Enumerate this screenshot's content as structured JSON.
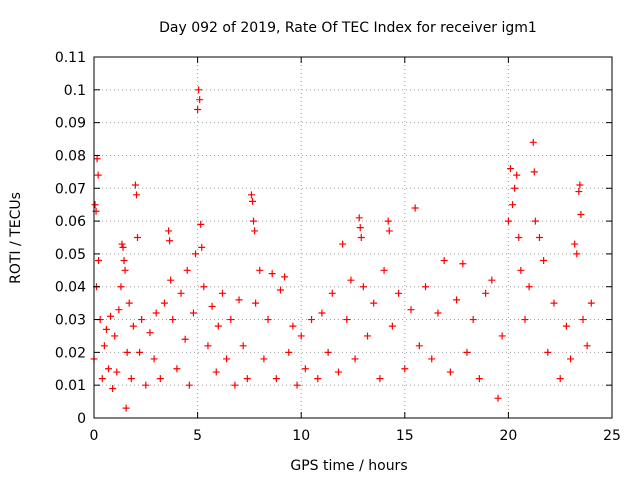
{
  "chart_data": {
    "type": "scatter",
    "title": "Day 092 of 2019, Rate Of TEC Index for receiver igm1",
    "xlabel": "GPS time / hours",
    "ylabel": "ROTI / TECUs",
    "xlim": [
      0,
      25
    ],
    "ylim": [
      0,
      0.11
    ],
    "xticks": [
      0,
      5,
      10,
      15,
      20,
      25
    ],
    "xtick_labels": [
      "0",
      "5",
      "10",
      "15",
      "20",
      "25"
    ],
    "yticks": [
      0,
      0.01,
      0.02,
      0.03,
      0.04,
      0.05,
      0.06,
      0.07,
      0.08,
      0.09,
      0.1,
      0.11
    ],
    "ytick_labels": [
      "0",
      "0.01",
      "0.02",
      "0.03",
      "0.04",
      "0.05",
      "0.06",
      "0.07",
      "0.08",
      "0.09",
      "0.1",
      "0.11"
    ],
    "grid": true,
    "marker": "+",
    "color": "#ff0000",
    "series": [
      {
        "name": "ROTI",
        "points": [
          [
            0.0,
            0.018
          ],
          [
            0.05,
            0.065
          ],
          [
            0.1,
            0.063
          ],
          [
            0.12,
            0.04
          ],
          [
            0.15,
            0.079
          ],
          [
            0.2,
            0.074
          ],
          [
            0.22,
            0.048
          ],
          [
            0.3,
            0.03
          ],
          [
            0.4,
            0.012
          ],
          [
            0.5,
            0.022
          ],
          [
            0.6,
            0.027
          ],
          [
            0.7,
            0.015
          ],
          [
            0.8,
            0.031
          ],
          [
            0.9,
            0.009
          ],
          [
            1.0,
            0.025
          ],
          [
            1.1,
            0.014
          ],
          [
            1.2,
            0.033
          ],
          [
            1.3,
            0.04
          ],
          [
            1.35,
            0.053
          ],
          [
            1.4,
            0.052
          ],
          [
            1.45,
            0.048
          ],
          [
            1.5,
            0.045
          ],
          [
            1.55,
            0.003
          ],
          [
            1.6,
            0.02
          ],
          [
            1.7,
            0.035
          ],
          [
            1.8,
            0.012
          ],
          [
            1.9,
            0.028
          ],
          [
            2.0,
            0.071
          ],
          [
            2.05,
            0.068
          ],
          [
            2.1,
            0.055
          ],
          [
            2.2,
            0.02
          ],
          [
            2.3,
            0.03
          ],
          [
            2.5,
            0.01
          ],
          [
            2.7,
            0.026
          ],
          [
            2.9,
            0.018
          ],
          [
            3.0,
            0.032
          ],
          [
            3.2,
            0.012
          ],
          [
            3.4,
            0.035
          ],
          [
            3.6,
            0.057
          ],
          [
            3.65,
            0.054
          ],
          [
            3.7,
            0.042
          ],
          [
            3.8,
            0.03
          ],
          [
            4.0,
            0.015
          ],
          [
            4.2,
            0.038
          ],
          [
            4.4,
            0.024
          ],
          [
            4.5,
            0.045
          ],
          [
            4.6,
            0.01
          ],
          [
            4.8,
            0.032
          ],
          [
            4.9,
            0.05
          ],
          [
            5.0,
            0.094
          ],
          [
            5.05,
            0.1
          ],
          [
            5.1,
            0.097
          ],
          [
            5.15,
            0.059
          ],
          [
            5.2,
            0.052
          ],
          [
            5.3,
            0.04
          ],
          [
            5.5,
            0.022
          ],
          [
            5.7,
            0.034
          ],
          [
            5.9,
            0.014
          ],
          [
            6.0,
            0.028
          ],
          [
            6.2,
            0.038
          ],
          [
            6.4,
            0.018
          ],
          [
            6.6,
            0.03
          ],
          [
            6.8,
            0.01
          ],
          [
            7.0,
            0.036
          ],
          [
            7.2,
            0.022
          ],
          [
            7.4,
            0.012
          ],
          [
            7.6,
            0.068
          ],
          [
            7.65,
            0.066
          ],
          [
            7.7,
            0.06
          ],
          [
            7.75,
            0.057
          ],
          [
            7.8,
            0.035
          ],
          [
            8.0,
            0.045
          ],
          [
            8.2,
            0.018
          ],
          [
            8.4,
            0.03
          ],
          [
            8.6,
            0.044
          ],
          [
            8.8,
            0.012
          ],
          [
            9.0,
            0.039
          ],
          [
            9.2,
            0.043
          ],
          [
            9.4,
            0.02
          ],
          [
            9.6,
            0.028
          ],
          [
            9.8,
            0.01
          ],
          [
            10.0,
            0.025
          ],
          [
            10.2,
            0.015
          ],
          [
            10.5,
            0.03
          ],
          [
            10.8,
            0.012
          ],
          [
            11.0,
            0.032
          ],
          [
            11.3,
            0.02
          ],
          [
            11.5,
            0.038
          ],
          [
            11.8,
            0.014
          ],
          [
            12.0,
            0.053
          ],
          [
            12.2,
            0.03
          ],
          [
            12.4,
            0.042
          ],
          [
            12.6,
            0.018
          ],
          [
            12.8,
            0.061
          ],
          [
            12.85,
            0.058
          ],
          [
            12.9,
            0.055
          ],
          [
            13.0,
            0.04
          ],
          [
            13.2,
            0.025
          ],
          [
            13.5,
            0.035
          ],
          [
            13.8,
            0.012
          ],
          [
            14.0,
            0.045
          ],
          [
            14.2,
            0.06
          ],
          [
            14.25,
            0.057
          ],
          [
            14.4,
            0.028
          ],
          [
            14.7,
            0.038
          ],
          [
            15.0,
            0.015
          ],
          [
            15.3,
            0.033
          ],
          [
            15.5,
            0.064
          ],
          [
            15.7,
            0.022
          ],
          [
            16.0,
            0.04
          ],
          [
            16.3,
            0.018
          ],
          [
            16.6,
            0.032
          ],
          [
            16.9,
            0.048
          ],
          [
            17.2,
            0.014
          ],
          [
            17.5,
            0.036
          ],
          [
            17.8,
            0.047
          ],
          [
            18.0,
            0.02
          ],
          [
            18.3,
            0.03
          ],
          [
            18.6,
            0.012
          ],
          [
            18.9,
            0.038
          ],
          [
            19.2,
            0.042
          ],
          [
            19.5,
            0.006
          ],
          [
            19.7,
            0.025
          ],
          [
            20.0,
            0.06
          ],
          [
            20.1,
            0.076
          ],
          [
            20.2,
            0.065
          ],
          [
            20.3,
            0.07
          ],
          [
            20.4,
            0.074
          ],
          [
            20.5,
            0.055
          ],
          [
            20.6,
            0.045
          ],
          [
            20.8,
            0.03
          ],
          [
            21.0,
            0.04
          ],
          [
            21.2,
            0.084
          ],
          [
            21.25,
            0.075
          ],
          [
            21.3,
            0.06
          ],
          [
            21.5,
            0.055
          ],
          [
            21.7,
            0.048
          ],
          [
            21.9,
            0.02
          ],
          [
            22.2,
            0.035
          ],
          [
            22.5,
            0.012
          ],
          [
            22.8,
            0.028
          ],
          [
            23.0,
            0.018
          ],
          [
            23.2,
            0.053
          ],
          [
            23.3,
            0.05
          ],
          [
            23.4,
            0.069
          ],
          [
            23.45,
            0.071
          ],
          [
            23.5,
            0.062
          ],
          [
            23.6,
            0.03
          ],
          [
            23.8,
            0.022
          ],
          [
            24.0,
            0.035
          ]
        ]
      }
    ]
  }
}
